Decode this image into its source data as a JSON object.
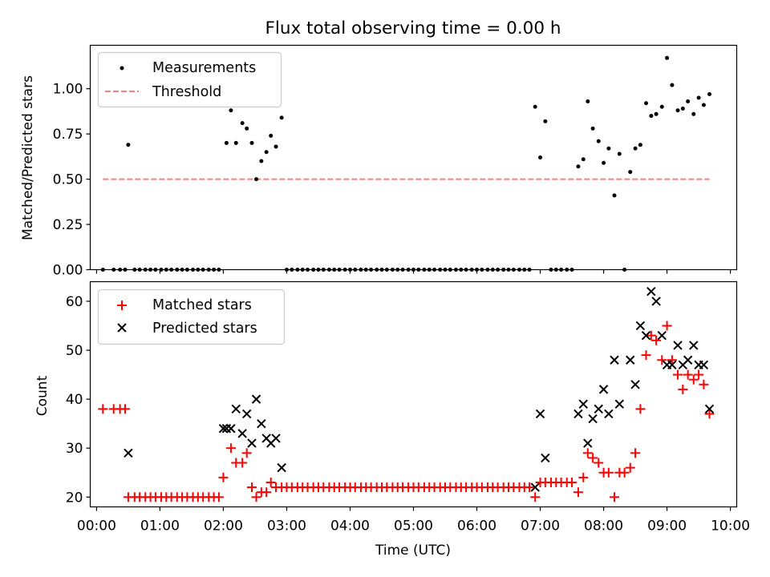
{
  "chart_data": [
    {
      "type": "scatter",
      "title": "Flux total observing time = 0.00 h",
      "xlabel": "",
      "ylabel": "Matched/Predicted stars",
      "xlim": [
        -0.1,
        10.1
      ],
      "ylim": [
        0,
        1.24
      ],
      "yticks": [
        0.0,
        0.25,
        0.5,
        0.75,
        1.0
      ],
      "ytick_labels": [
        "0.00",
        "0.25",
        "0.50",
        "0.75",
        "1.00"
      ],
      "legend_position": "upper-left",
      "series": [
        {
          "name": "Measurements",
          "marker": "dot",
          "color": "#000000",
          "points": [
            [
              0.1,
              0
            ],
            [
              0.27,
              0
            ],
            [
              0.37,
              0
            ],
            [
              0.45,
              0
            ],
            [
              0.5,
              0.69
            ],
            [
              0.6,
              0
            ],
            [
              0.68,
              0
            ],
            [
              0.77,
              0
            ],
            [
              0.85,
              0
            ],
            [
              0.93,
              0
            ],
            [
              1.02,
              0
            ],
            [
              1.1,
              0
            ],
            [
              1.18,
              0
            ],
            [
              1.27,
              0
            ],
            [
              1.35,
              0
            ],
            [
              1.43,
              0
            ],
            [
              1.52,
              0
            ],
            [
              1.6,
              0
            ],
            [
              1.68,
              0
            ],
            [
              1.77,
              0
            ],
            [
              1.85,
              0
            ],
            [
              1.93,
              0
            ],
            [
              2.05,
              0.7
            ],
            [
              2.12,
              0.88
            ],
            [
              2.2,
              0.7
            ],
            [
              2.3,
              0.81
            ],
            [
              2.37,
              0.78
            ],
            [
              2.45,
              0.7
            ],
            [
              2.52,
              0.5
            ],
            [
              2.6,
              0.6
            ],
            [
              2.68,
              0.65
            ],
            [
              2.75,
              0.74
            ],
            [
              2.83,
              0.68
            ],
            [
              2.92,
              0.84
            ],
            [
              3.0,
              0
            ],
            [
              3.08,
              0
            ],
            [
              3.17,
              0
            ],
            [
              3.25,
              0
            ],
            [
              3.33,
              0
            ],
            [
              3.42,
              0
            ],
            [
              3.5,
              0
            ],
            [
              3.58,
              0
            ],
            [
              3.67,
              0
            ],
            [
              3.75,
              0
            ],
            [
              3.83,
              0
            ],
            [
              3.92,
              0
            ],
            [
              4.0,
              0
            ],
            [
              4.08,
              0
            ],
            [
              4.17,
              0
            ],
            [
              4.25,
              0
            ],
            [
              4.33,
              0
            ],
            [
              4.42,
              0
            ],
            [
              4.5,
              0
            ],
            [
              4.58,
              0
            ],
            [
              4.67,
              0
            ],
            [
              4.75,
              0
            ],
            [
              4.83,
              0
            ],
            [
              4.92,
              0
            ],
            [
              5.0,
              0
            ],
            [
              5.08,
              0
            ],
            [
              5.17,
              0
            ],
            [
              5.25,
              0
            ],
            [
              5.33,
              0
            ],
            [
              5.42,
              0
            ],
            [
              5.5,
              0
            ],
            [
              5.58,
              0
            ],
            [
              5.67,
              0
            ],
            [
              5.75,
              0
            ],
            [
              5.83,
              0
            ],
            [
              5.92,
              0
            ],
            [
              6.0,
              0
            ],
            [
              6.08,
              0
            ],
            [
              6.17,
              0
            ],
            [
              6.25,
              0
            ],
            [
              6.33,
              0
            ],
            [
              6.42,
              0
            ],
            [
              6.5,
              0
            ],
            [
              6.58,
              0
            ],
            [
              6.67,
              0
            ],
            [
              6.75,
              0
            ],
            [
              6.83,
              0
            ],
            [
              6.92,
              0.9
            ],
            [
              7.0,
              0.62
            ],
            [
              7.08,
              0.82
            ],
            [
              7.17,
              0
            ],
            [
              7.25,
              0
            ],
            [
              7.33,
              0
            ],
            [
              7.42,
              0
            ],
            [
              7.5,
              0
            ],
            [
              7.6,
              0.57
            ],
            [
              7.68,
              0.61
            ],
            [
              7.75,
              0.93
            ],
            [
              7.83,
              0.78
            ],
            [
              7.92,
              0.71
            ],
            [
              8.0,
              0.59
            ],
            [
              8.08,
              0.67
            ],
            [
              8.17,
              0.41
            ],
            [
              8.25,
              0.64
            ],
            [
              8.33,
              0
            ],
            [
              8.42,
              0.54
            ],
            [
              8.5,
              0.67
            ],
            [
              8.58,
              0.69
            ],
            [
              8.67,
              0.92
            ],
            [
              8.75,
              0.85
            ],
            [
              8.83,
              0.86
            ],
            [
              8.92,
              0.9
            ],
            [
              9.0,
              1.17
            ],
            [
              9.08,
              1.02
            ],
            [
              9.17,
              0.88
            ],
            [
              9.25,
              0.89
            ],
            [
              9.33,
              0.93
            ],
            [
              9.42,
              0.86
            ],
            [
              9.5,
              0.95
            ],
            [
              9.58,
              0.91
            ],
            [
              9.67,
              0.97
            ]
          ]
        },
        {
          "name": "Threshold",
          "marker": "dashed-line",
          "color": "#ff7f7f",
          "x": [
            0.1,
            9.67
          ],
          "y": [
            0.5,
            0.5
          ]
        }
      ]
    },
    {
      "type": "scatter",
      "title": "",
      "xlabel": "Time (UTC)",
      "ylabel": "Count",
      "xlim": [
        -0.1,
        10.1
      ],
      "ylim": [
        18,
        64
      ],
      "yticks": [
        20,
        30,
        40,
        50,
        60
      ],
      "ytick_labels": [
        "20",
        "30",
        "40",
        "50",
        "60"
      ],
      "xticks": [
        0,
        1,
        2,
        3,
        4,
        5,
        6,
        7,
        8,
        9,
        10
      ],
      "xtick_labels": [
        "00:00",
        "01:00",
        "02:00",
        "03:00",
        "04:00",
        "05:00",
        "06:00",
        "07:00",
        "08:00",
        "09:00",
        "10:00"
      ],
      "legend_position": "upper-left",
      "series": [
        {
          "name": "Matched stars",
          "marker": "plus",
          "color": "#ff0000",
          "points": [
            [
              0.1,
              38
            ],
            [
              0.27,
              38
            ],
            [
              0.37,
              38
            ],
            [
              0.45,
              38
            ],
            [
              0.5,
              20
            ],
            [
              0.6,
              20
            ],
            [
              0.68,
              20
            ],
            [
              0.77,
              20
            ],
            [
              0.85,
              20
            ],
            [
              0.93,
              20
            ],
            [
              1.02,
              20
            ],
            [
              1.1,
              20
            ],
            [
              1.18,
              20
            ],
            [
              1.27,
              20
            ],
            [
              1.35,
              20
            ],
            [
              1.43,
              20
            ],
            [
              1.52,
              20
            ],
            [
              1.6,
              20
            ],
            [
              1.68,
              20
            ],
            [
              1.77,
              20
            ],
            [
              1.85,
              20
            ],
            [
              1.93,
              20
            ],
            [
              2.0,
              24
            ],
            [
              2.12,
              30
            ],
            [
              2.2,
              27
            ],
            [
              2.3,
              27
            ],
            [
              2.37,
              29
            ],
            [
              2.45,
              22
            ],
            [
              2.52,
              20
            ],
            [
              2.6,
              21
            ],
            [
              2.68,
              21
            ],
            [
              2.75,
              23
            ],
            [
              2.83,
              22
            ],
            [
              2.92,
              22
            ],
            [
              3.0,
              22
            ],
            [
              3.08,
              22
            ],
            [
              3.17,
              22
            ],
            [
              3.25,
              22
            ],
            [
              3.33,
              22
            ],
            [
              3.42,
              22
            ],
            [
              3.5,
              22
            ],
            [
              3.58,
              22
            ],
            [
              3.67,
              22
            ],
            [
              3.75,
              22
            ],
            [
              3.83,
              22
            ],
            [
              3.92,
              22
            ],
            [
              4.0,
              22
            ],
            [
              4.08,
              22
            ],
            [
              4.17,
              22
            ],
            [
              4.25,
              22
            ],
            [
              4.33,
              22
            ],
            [
              4.42,
              22
            ],
            [
              4.5,
              22
            ],
            [
              4.58,
              22
            ],
            [
              4.67,
              22
            ],
            [
              4.75,
              22
            ],
            [
              4.83,
              22
            ],
            [
              4.92,
              22
            ],
            [
              5.0,
              22
            ],
            [
              5.08,
              22
            ],
            [
              5.17,
              22
            ],
            [
              5.25,
              22
            ],
            [
              5.33,
              22
            ],
            [
              5.42,
              22
            ],
            [
              5.5,
              22
            ],
            [
              5.58,
              22
            ],
            [
              5.67,
              22
            ],
            [
              5.75,
              22
            ],
            [
              5.83,
              22
            ],
            [
              5.92,
              22
            ],
            [
              6.0,
              22
            ],
            [
              6.08,
              22
            ],
            [
              6.17,
              22
            ],
            [
              6.25,
              22
            ],
            [
              6.33,
              22
            ],
            [
              6.42,
              22
            ],
            [
              6.5,
              22
            ],
            [
              6.58,
              22
            ],
            [
              6.67,
              22
            ],
            [
              6.75,
              22
            ],
            [
              6.83,
              22
            ],
            [
              6.92,
              20
            ],
            [
              7.0,
              23
            ],
            [
              7.08,
              23
            ],
            [
              7.17,
              23
            ],
            [
              7.25,
              23
            ],
            [
              7.33,
              23
            ],
            [
              7.42,
              23
            ],
            [
              7.5,
              23
            ],
            [
              7.6,
              21
            ],
            [
              7.68,
              24
            ],
            [
              7.75,
              29
            ],
            [
              7.83,
              28
            ],
            [
              7.92,
              27
            ],
            [
              8.0,
              25
            ],
            [
              8.08,
              25
            ],
            [
              8.17,
              20
            ],
            [
              8.25,
              25
            ],
            [
              8.33,
              25
            ],
            [
              8.42,
              26
            ],
            [
              8.5,
              29
            ],
            [
              8.58,
              38
            ],
            [
              8.67,
              49
            ],
            [
              8.75,
              53
            ],
            [
              8.83,
              52
            ],
            [
              8.92,
              48
            ],
            [
              9.0,
              55
            ],
            [
              9.08,
              48
            ],
            [
              9.17,
              45
            ],
            [
              9.25,
              42
            ],
            [
              9.33,
              45
            ],
            [
              9.42,
              44
            ],
            [
              9.5,
              45
            ],
            [
              9.58,
              43
            ],
            [
              9.67,
              37
            ]
          ]
        },
        {
          "name": "Predicted stars",
          "marker": "x",
          "color": "#000000",
          "points": [
            [
              0.5,
              29
            ],
            [
              2.0,
              34
            ],
            [
              2.05,
              34
            ],
            [
              2.12,
              34
            ],
            [
              2.2,
              38
            ],
            [
              2.3,
              33
            ],
            [
              2.37,
              37
            ],
            [
              2.45,
              31
            ],
            [
              2.52,
              40
            ],
            [
              2.6,
              35
            ],
            [
              2.68,
              32
            ],
            [
              2.75,
              31
            ],
            [
              2.83,
              32
            ],
            [
              2.92,
              26
            ],
            [
              6.92,
              22
            ],
            [
              7.0,
              37
            ],
            [
              7.08,
              28
            ],
            [
              7.6,
              37
            ],
            [
              7.68,
              39
            ],
            [
              7.75,
              31
            ],
            [
              7.83,
              36
            ],
            [
              7.92,
              38
            ],
            [
              8.0,
              42
            ],
            [
              8.08,
              37
            ],
            [
              8.17,
              48
            ],
            [
              8.25,
              39
            ],
            [
              8.42,
              48
            ],
            [
              8.5,
              43
            ],
            [
              8.58,
              55
            ],
            [
              8.67,
              53
            ],
            [
              8.75,
              62
            ],
            [
              8.83,
              60
            ],
            [
              8.92,
              53
            ],
            [
              9.0,
              47
            ],
            [
              9.08,
              47
            ],
            [
              9.17,
              51
            ],
            [
              9.25,
              47
            ],
            [
              9.33,
              48
            ],
            [
              9.42,
              51
            ],
            [
              9.5,
              47
            ],
            [
              9.58,
              47
            ],
            [
              9.67,
              38
            ]
          ]
        }
      ]
    }
  ]
}
